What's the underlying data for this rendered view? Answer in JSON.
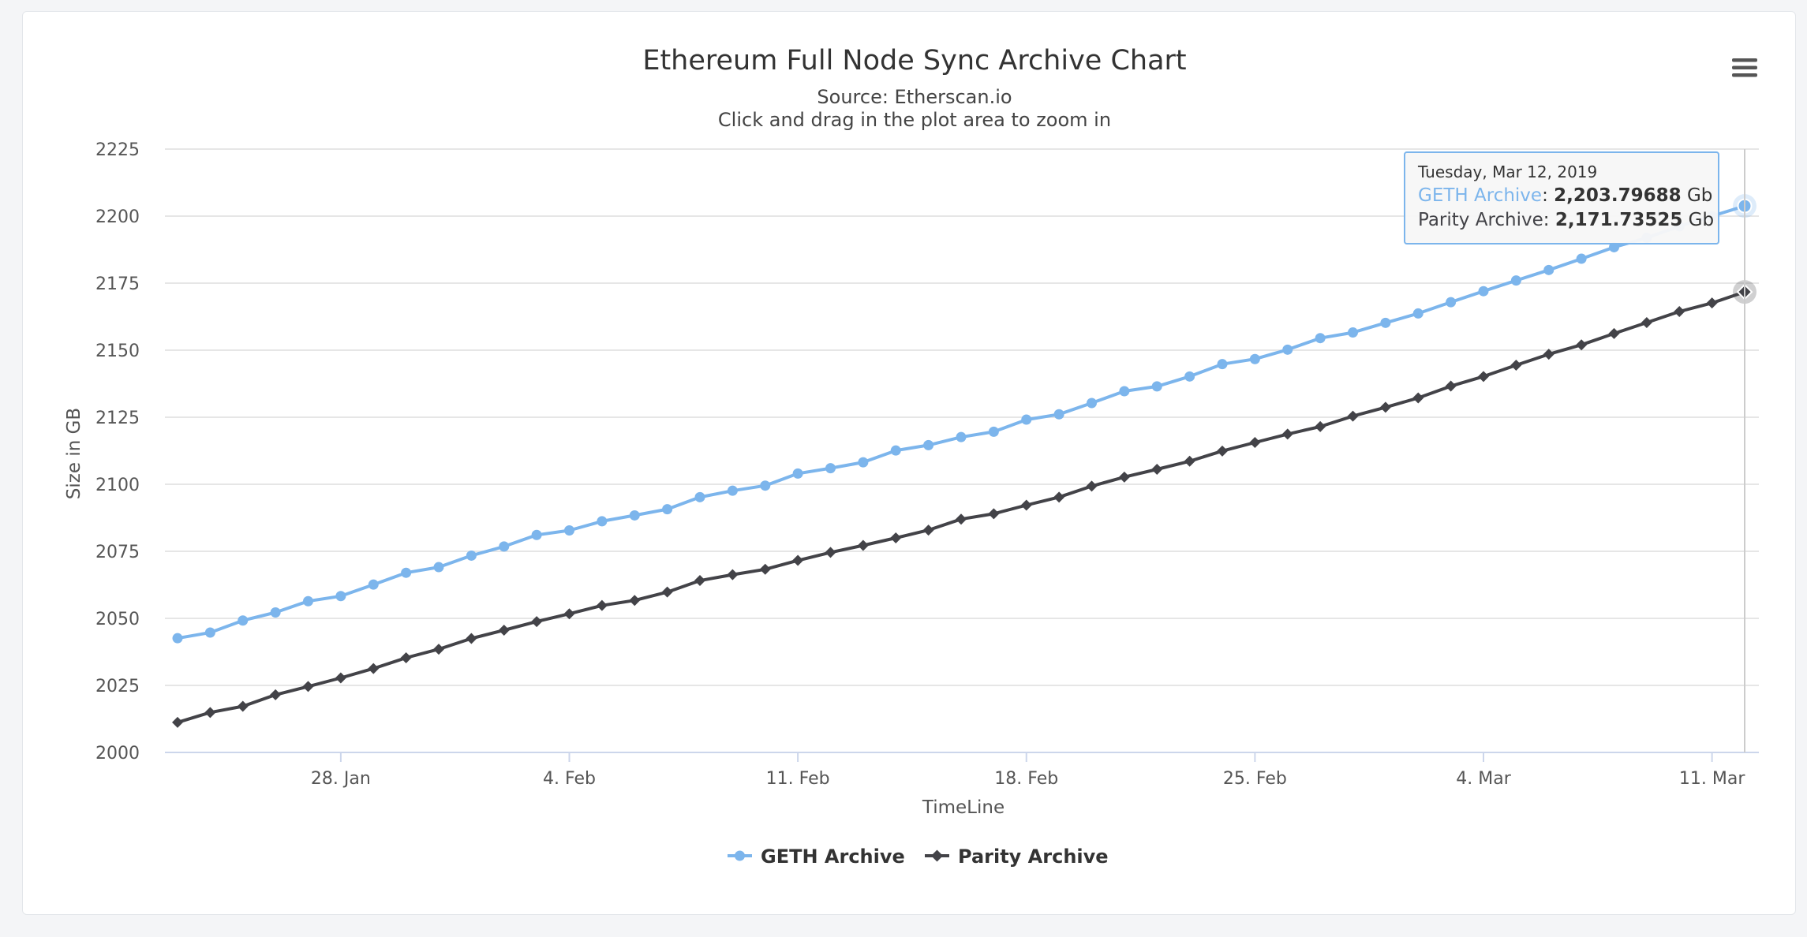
{
  "menu": {
    "icon": "hamburger-menu-icon"
  },
  "chart_data": {
    "type": "line",
    "title": "Ethereum Full Node Sync Archive Chart",
    "subtitle": "Source: Etherscan.io",
    "hint": "Click and drag in the plot area to zoom in",
    "xlabel": "TimeLine",
    "ylabel": "Size in GB",
    "ylim": [
      2000,
      2225
    ],
    "yticks": [
      2000,
      2025,
      2050,
      2075,
      2100,
      2125,
      2150,
      2175,
      2200,
      2225
    ],
    "x_start": "2019-01-23",
    "x_end": "2019-03-12",
    "xticks": [
      {
        "label": "28. Jan",
        "date": "2019-01-28"
      },
      {
        "label": "4. Feb",
        "date": "2019-02-04"
      },
      {
        "label": "11. Feb",
        "date": "2019-02-11"
      },
      {
        "label": "18. Feb",
        "date": "2019-02-18"
      },
      {
        "label": "25. Feb",
        "date": "2019-02-25"
      },
      {
        "label": "4. Mar",
        "date": "2019-03-04"
      },
      {
        "label": "11. Mar",
        "date": "2019-03-11"
      }
    ],
    "grid": true,
    "legend_position": "bottom-center",
    "series": [
      {
        "name": "GETH Archive",
        "color": "#7cb5ec",
        "marker": "circle",
        "values": [
          2042.6,
          2044.7,
          2049.2,
          2052.2,
          2056.4,
          2058.3,
          2062.6,
          2067.0,
          2069.1,
          2073.4,
          2076.8,
          2081.1,
          2082.8,
          2086.2,
          2088.4,
          2090.7,
          2095.2,
          2097.6,
          2099.5,
          2104.0,
          2106.0,
          2108.2,
          2112.6,
          2114.6,
          2117.6,
          2119.6,
          2124.1,
          2126.1,
          2130.3,
          2134.7,
          2136.5,
          2140.2,
          2144.8,
          2146.7,
          2150.2,
          2154.5,
          2156.6,
          2160.2,
          2163.7,
          2167.9,
          2172.0,
          2176.0,
          2179.9,
          2184.1,
          2188.4,
          2191.9,
          2196.2,
          2200.0,
          2203.79688
        ]
      },
      {
        "name": "Parity Archive",
        "color": "#434348",
        "marker": "diamond",
        "values": [
          2011.2,
          2014.9,
          2017.2,
          2021.5,
          2024.6,
          2027.8,
          2031.3,
          2035.3,
          2038.5,
          2042.5,
          2045.6,
          2048.8,
          2051.7,
          2054.8,
          2056.7,
          2059.8,
          2064.1,
          2066.3,
          2068.3,
          2071.6,
          2074.6,
          2077.2,
          2080.0,
          2082.9,
          2087.0,
          2089.0,
          2092.2,
          2095.2,
          2099.3,
          2102.7,
          2105.6,
          2108.6,
          2112.4,
          2115.6,
          2118.7,
          2121.5,
          2125.4,
          2128.7,
          2132.2,
          2136.6,
          2140.2,
          2144.4,
          2148.5,
          2152.0,
          2156.2,
          2160.3,
          2164.4,
          2167.6,
          2171.73525
        ]
      }
    ],
    "tooltip": {
      "date": "Tuesday, Mar 12, 2019",
      "rows": [
        {
          "series": "GETH Archive",
          "value": "2,203.79688",
          "unit": "Gb"
        },
        {
          "series": "Parity Archive",
          "value": "2,171.73525",
          "unit": "Gb"
        }
      ]
    }
  }
}
